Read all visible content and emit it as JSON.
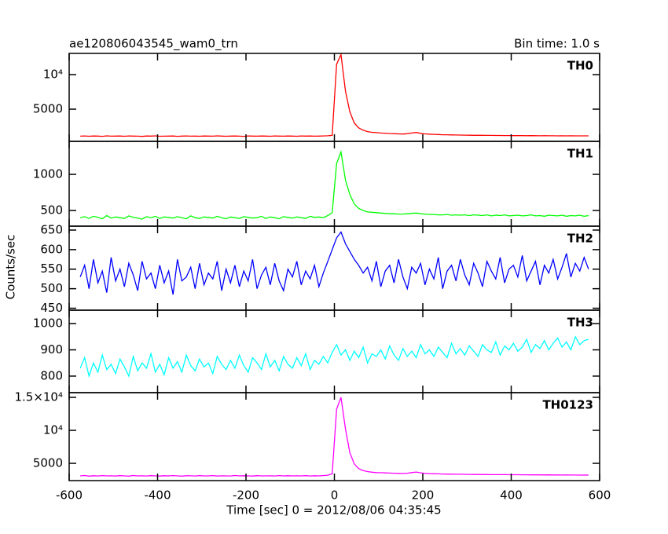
{
  "chart_data": [
    {
      "type": "line",
      "title": "ae120806043545_wam0_trn",
      "subtitle": "Bin time: 1.0 s",
      "name": "TH0",
      "color": "#ff0000",
      "xlim": [
        -600,
        600
      ],
      "ylim": [
        340,
        13070
      ],
      "yticks": [
        5000,
        {
          "value": 10000,
          "label": "10⁴"
        }
      ],
      "x": [
        -575,
        -565,
        -555,
        -545,
        -535,
        -525,
        -515,
        -505,
        -495,
        -485,
        -475,
        -465,
        -455,
        -445,
        -435,
        -425,
        -415,
        -405,
        -395,
        -385,
        -375,
        -365,
        -355,
        -345,
        -335,
        -325,
        -315,
        -305,
        -295,
        -285,
        -275,
        -265,
        -255,
        -245,
        -235,
        -225,
        -215,
        -205,
        -195,
        -185,
        -175,
        -165,
        -155,
        -145,
        -135,
        -125,
        -115,
        -105,
        -95,
        -85,
        -75,
        -65,
        -55,
        -45,
        -35,
        -25,
        -15,
        -5,
        5,
        15,
        25,
        35,
        45,
        55,
        65,
        75,
        85,
        95,
        105,
        115,
        125,
        135,
        145,
        155,
        165,
        175,
        185,
        195,
        205,
        215,
        225,
        235,
        245,
        255,
        265,
        275,
        285,
        295,
        305,
        315,
        325,
        335,
        345,
        355,
        365,
        375,
        385,
        395,
        405,
        415,
        425,
        435,
        445,
        455,
        465,
        475,
        485,
        495,
        505,
        515,
        525,
        535,
        545,
        555,
        565,
        575
      ],
      "values": [
        1090,
        1120,
        1080,
        1110,
        1100,
        1070,
        1130,
        1090,
        1100,
        1110,
        1080,
        1120,
        1100,
        1090,
        1060,
        1110,
        1100,
        1130,
        1080,
        1090,
        1100,
        1110,
        1070,
        1100,
        1120,
        1090,
        1100,
        1080,
        1110,
        1100,
        1090,
        1130,
        1100,
        1080,
        1100,
        1110,
        1090,
        1070,
        1120,
        1100,
        1090,
        1110,
        1100,
        1080,
        1120,
        1100,
        1090,
        1110,
        1100,
        1080,
        1120,
        1100,
        1110,
        1090,
        1100,
        1120,
        1150,
        1200,
        11500,
        12900,
        7600,
        4600,
        3000,
        2300,
        1950,
        1750,
        1650,
        1600,
        1550,
        1520,
        1480,
        1450,
        1420,
        1400,
        1450,
        1550,
        1620,
        1500,
        1420,
        1380,
        1350,
        1330,
        1300,
        1290,
        1270,
        1260,
        1250,
        1240,
        1230,
        1220,
        1220,
        1210,
        1200,
        1200,
        1190,
        1190,
        1180,
        1180,
        1170,
        1180,
        1170,
        1160,
        1170,
        1160,
        1150,
        1160,
        1150,
        1150,
        1140,
        1150,
        1140,
        1150,
        1140,
        1130,
        1140,
        1130
      ]
    },
    {
      "type": "line",
      "name": "TH1",
      "color": "#00ff00",
      "xlim": [
        -600,
        600
      ],
      "ylim": [
        283,
        1457
      ],
      "yticks": [
        500,
        1000
      ],
      "x": [
        -575,
        -565,
        -555,
        -545,
        -535,
        -525,
        -515,
        -505,
        -495,
        -485,
        -475,
        -465,
        -455,
        -445,
        -435,
        -425,
        -415,
        -405,
        -395,
        -385,
        -375,
        -365,
        -355,
        -345,
        -335,
        -325,
        -315,
        -305,
        -295,
        -285,
        -275,
        -265,
        -255,
        -245,
        -235,
        -225,
        -215,
        -205,
        -195,
        -185,
        -175,
        -165,
        -155,
        -145,
        -135,
        -125,
        -115,
        -105,
        -95,
        -85,
        -75,
        -65,
        -55,
        -45,
        -35,
        -25,
        -15,
        -5,
        5,
        15,
        25,
        35,
        45,
        55,
        65,
        75,
        85,
        95,
        105,
        115,
        125,
        135,
        145,
        155,
        165,
        175,
        185,
        195,
        205,
        215,
        225,
        235,
        245,
        255,
        265,
        275,
        285,
        295,
        305,
        315,
        325,
        335,
        345,
        355,
        365,
        375,
        385,
        395,
        405,
        415,
        425,
        435,
        445,
        455,
        465,
        475,
        485,
        495,
        505,
        515,
        525,
        535,
        545,
        555,
        565,
        575
      ],
      "values": [
        400,
        415,
        390,
        420,
        405,
        385,
        430,
        395,
        410,
        400,
        390,
        425,
        405,
        395,
        380,
        415,
        400,
        420,
        390,
        410,
        405,
        395,
        415,
        400,
        385,
        425,
        400,
        390,
        410,
        405,
        395,
        420,
        400,
        385,
        410,
        400,
        390,
        415,
        405,
        395,
        400,
        420,
        390,
        410,
        400,
        385,
        415,
        405,
        395,
        410,
        400,
        390,
        420,
        405,
        410,
        400,
        430,
        470,
        1150,
        1310,
        920,
        720,
        590,
        530,
        500,
        480,
        475,
        470,
        465,
        460,
        455,
        455,
        450,
        450,
        455,
        460,
        465,
        455,
        450,
        445,
        445,
        440,
        440,
        445,
        435,
        440,
        435,
        440,
        430,
        440,
        435,
        430,
        440,
        425,
        435,
        430,
        440,
        425,
        430,
        435,
        425,
        430,
        440,
        425,
        430,
        420,
        435,
        430,
        425,
        435,
        420,
        430,
        425,
        435,
        420,
        430
      ]
    },
    {
      "type": "line",
      "name": "TH2",
      "color": "#0000ff",
      "ylabel": "Counts/sec",
      "xlim": [
        -600,
        600
      ],
      "ylim": [
        445,
        660
      ],
      "yticks": [
        450,
        500,
        550,
        600,
        650
      ],
      "x": [
        -575,
        -565,
        -555,
        -545,
        -535,
        -525,
        -515,
        -505,
        -495,
        -485,
        -475,
        -465,
        -455,
        -445,
        -435,
        -425,
        -415,
        -405,
        -395,
        -385,
        -375,
        -365,
        -355,
        -345,
        -335,
        -325,
        -315,
        -305,
        -295,
        -285,
        -275,
        -265,
        -255,
        -245,
        -235,
        -225,
        -215,
        -205,
        -195,
        -185,
        -175,
        -165,
        -155,
        -145,
        -135,
        -125,
        -115,
        -105,
        -95,
        -85,
        -75,
        -65,
        -55,
        -45,
        -35,
        -25,
        -15,
        -5,
        5,
        15,
        25,
        35,
        45,
        55,
        65,
        75,
        85,
        95,
        105,
        115,
        125,
        135,
        145,
        155,
        165,
        175,
        185,
        195,
        205,
        215,
        225,
        235,
        245,
        255,
        265,
        275,
        285,
        295,
        305,
        315,
        325,
        335,
        345,
        355,
        365,
        375,
        385,
        395,
        405,
        415,
        425,
        435,
        445,
        455,
        465,
        475,
        485,
        495,
        505,
        515,
        525,
        535,
        545,
        555,
        565,
        575
      ],
      "values": [
        530,
        560,
        500,
        575,
        515,
        545,
        490,
        580,
        520,
        550,
        505,
        565,
        535,
        495,
        570,
        525,
        540,
        500,
        560,
        515,
        545,
        485,
        575,
        520,
        530,
        555,
        500,
        565,
        510,
        540,
        525,
        570,
        495,
        550,
        515,
        560,
        505,
        545,
        520,
        575,
        500,
        535,
        555,
        510,
        565,
        520,
        495,
        550,
        530,
        570,
        510,
        545,
        525,
        560,
        505,
        540,
        570,
        600,
        630,
        645,
        615,
        595,
        575,
        560,
        540,
        555,
        520,
        570,
        505,
        545,
        560,
        515,
        575,
        530,
        500,
        555,
        540,
        565,
        510,
        550,
        525,
        580,
        500,
        545,
        560,
        520,
        575,
        535,
        510,
        565,
        540,
        505,
        570,
        545,
        525,
        580,
        515,
        550,
        560,
        530,
        585,
        520,
        545,
        570,
        510,
        560,
        540,
        575,
        525,
        555,
        590,
        530,
        565,
        545,
        580,
        550
      ]
    },
    {
      "type": "line",
      "name": "TH3",
      "color": "#00ffff",
      "xlim": [
        -600,
        600
      ],
      "ylim": [
        737,
        1051
      ],
      "yticks": [
        800,
        900,
        1000
      ],
      "x": [
        -575,
        -565,
        -555,
        -545,
        -535,
        -525,
        -515,
        -505,
        -495,
        -485,
        -475,
        -465,
        -455,
        -445,
        -435,
        -425,
        -415,
        -405,
        -395,
        -385,
        -375,
        -365,
        -355,
        -345,
        -335,
        -325,
        -315,
        -305,
        -295,
        -285,
        -275,
        -265,
        -255,
        -245,
        -235,
        -225,
        -215,
        -205,
        -195,
        -185,
        -175,
        -165,
        -155,
        -145,
        -135,
        -125,
        -115,
        -105,
        -95,
        -85,
        -75,
        -65,
        -55,
        -45,
        -35,
        -25,
        -15,
        -5,
        5,
        15,
        25,
        35,
        45,
        55,
        65,
        75,
        85,
        95,
        105,
        115,
        125,
        135,
        145,
        155,
        165,
        175,
        185,
        195,
        205,
        215,
        225,
        235,
        245,
        255,
        265,
        275,
        285,
        295,
        305,
        315,
        325,
        335,
        345,
        355,
        365,
        375,
        385,
        395,
        405,
        415,
        425,
        435,
        445,
        455,
        465,
        475,
        485,
        495,
        505,
        515,
        525,
        535,
        545,
        555,
        565,
        575
      ],
      "values": [
        830,
        870,
        800,
        850,
        815,
        880,
        825,
        845,
        810,
        865,
        835,
        800,
        875,
        820,
        850,
        830,
        885,
        815,
        845,
        805,
        870,
        830,
        855,
        815,
        880,
        840,
        820,
        865,
        835,
        850,
        810,
        875,
        845,
        825,
        860,
        830,
        880,
        840,
        815,
        870,
        850,
        825,
        885,
        835,
        860,
        820,
        875,
        845,
        830,
        870,
        840,
        885,
        825,
        860,
        845,
        875,
        850,
        890,
        920,
        880,
        900,
        860,
        895,
        870,
        910,
        850,
        885,
        875,
        900,
        865,
        915,
        880,
        860,
        905,
        875,
        895,
        870,
        920,
        885,
        900,
        875,
        910,
        890,
        870,
        925,
        885,
        905,
        880,
        915,
        895,
        875,
        920,
        900,
        890,
        930,
        880,
        915,
        900,
        925,
        895,
        910,
        940,
        890,
        920,
        905,
        935,
        900,
        925,
        945,
        910,
        930,
        900,
        950,
        920,
        935,
        940
      ]
    },
    {
      "type": "line",
      "name": "TH0123",
      "color": "#ff00ff",
      "xlabel": "Time [sec] 0 = 2012/08/06 04:35:45",
      "xlim": [
        -600,
        600
      ],
      "xticks": [
        -600,
        -400,
        -200,
        0,
        200,
        400,
        600
      ],
      "ylim": [
        2381,
        15714
      ],
      "yticks": [
        5000,
        {
          "value": 10000,
          "label": "10⁴"
        },
        {
          "value": 15000,
          "label": "1.5×10⁴"
        }
      ],
      "x": [
        -575,
        -565,
        -555,
        -545,
        -535,
        -525,
        -515,
        -505,
        -495,
        -485,
        -475,
        -465,
        -455,
        -445,
        -435,
        -425,
        -415,
        -405,
        -395,
        -385,
        -375,
        -365,
        -355,
        -345,
        -335,
        -325,
        -315,
        -305,
        -295,
        -285,
        -275,
        -265,
        -255,
        -245,
        -235,
        -225,
        -215,
        -205,
        -195,
        -185,
        -175,
        -165,
        -155,
        -145,
        -135,
        -125,
        -115,
        -105,
        -95,
        -85,
        -75,
        -65,
        -55,
        -45,
        -35,
        -25,
        -15,
        -5,
        5,
        15,
        25,
        35,
        45,
        55,
        65,
        75,
        85,
        95,
        105,
        115,
        125,
        135,
        145,
        155,
        165,
        175,
        185,
        195,
        205,
        215,
        225,
        235,
        245,
        255,
        265,
        275,
        285,
        295,
        305,
        315,
        325,
        335,
        345,
        355,
        365,
        375,
        385,
        395,
        405,
        415,
        425,
        435,
        445,
        455,
        465,
        475,
        485,
        495,
        505,
        515,
        525,
        535,
        545,
        555,
        565,
        575
      ],
      "values": [
        3100,
        3150,
        3060,
        3120,
        3080,
        3140,
        3090,
        3110,
        3070,
        3130,
        3100,
        3060,
        3150,
        3090,
        3110,
        3080,
        3130,
        3100,
        3070,
        3120,
        3090,
        3140,
        3100,
        3060,
        3120,
        3110,
        3080,
        3130,
        3090,
        3100,
        3140,
        3070,
        3110,
        3100,
        3080,
        3150,
        3090,
        3120,
        3100,
        3070,
        3130,
        3100,
        3090,
        3110,
        3080,
        3140,
        3100,
        3120,
        3090,
        3110,
        3100,
        3130,
        3080,
        3120,
        3100,
        3140,
        3200,
        3400,
        13200,
        15000,
        10200,
        6600,
        4900,
        4200,
        3900,
        3750,
        3650,
        3600,
        3580,
        3550,
        3520,
        3500,
        3480,
        3470,
        3500,
        3600,
        3680,
        3560,
        3480,
        3440,
        3420,
        3400,
        3380,
        3370,
        3360,
        3350,
        3340,
        3330,
        3320,
        3310,
        3310,
        3300,
        3300,
        3290,
        3290,
        3280,
        3280,
        3270,
        3270,
        3270,
        3260,
        3260,
        3250,
        3260,
        3250,
        3240,
        3250,
        3240,
        3240,
        3230,
        3240,
        3230,
        3230,
        3220,
        3230,
        3220
      ]
    }
  ]
}
